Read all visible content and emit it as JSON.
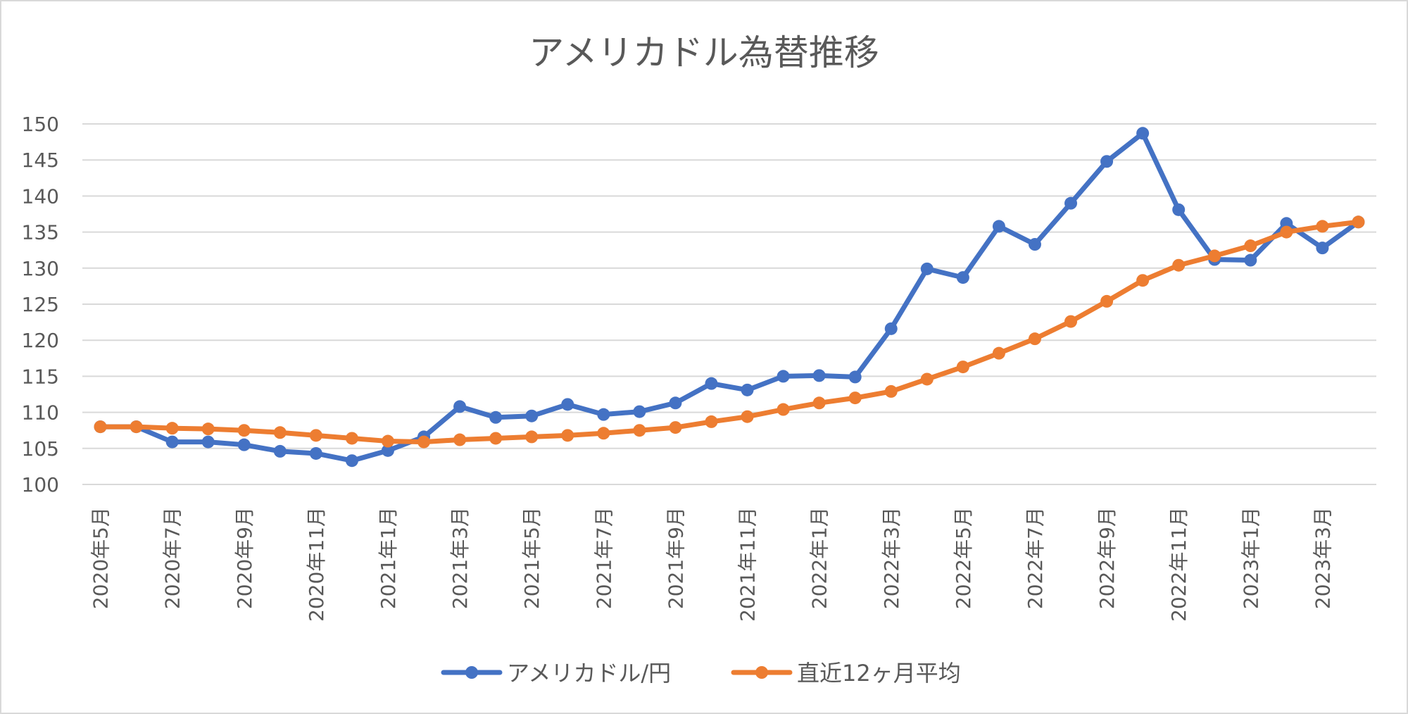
{
  "chart_data": {
    "type": "line",
    "title": "アメリカドル為替推移",
    "xlabel": "",
    "ylabel": "",
    "ylim": [
      100,
      150
    ],
    "yticks": [
      "100",
      "105",
      "110",
      "115",
      "120",
      "125",
      "130",
      "135",
      "140",
      "145",
      "150"
    ],
    "grid": true,
    "legend_position": "bottom",
    "x": [
      "2020年5月",
      "2020年6月",
      "2020年7月",
      "2020年8月",
      "2020年9月",
      "2020年10月",
      "2020年11月",
      "2020年12月",
      "2021年1月",
      "2021年2月",
      "2021年3月",
      "2021年4月",
      "2021年5月",
      "2021年6月",
      "2021年7月",
      "2021年8月",
      "2021年9月",
      "2021年10月",
      "2021年11月",
      "2021年12月",
      "2022年1月",
      "2022年2月",
      "2022年3月",
      "2022年4月",
      "2022年5月",
      "2022年6月",
      "2022年7月",
      "2022年8月",
      "2022年9月",
      "2022年10月",
      "2022年11月",
      "2022年12月",
      "2023年1月",
      "2023年2月",
      "2023年3月",
      "2023年4月"
    ],
    "xticks_shown": [
      "2020年5月",
      "2020年7月",
      "2020年9月",
      "2020年11月",
      "2021年1月",
      "2021年3月",
      "2021年5月",
      "2021年7月",
      "2021年9月",
      "2021年11月",
      "2022年1月",
      "2022年3月",
      "2022年5月",
      "2022年7月",
      "2022年9月",
      "2022年11月",
      "2023年1月",
      "2023年3月"
    ],
    "series": [
      {
        "name": "アメリカドル/円",
        "color": "#4472C4",
        "values": [
          108.0,
          108.0,
          105.9,
          105.9,
          105.5,
          104.6,
          104.3,
          103.3,
          104.7,
          106.6,
          110.8,
          109.3,
          109.5,
          111.1,
          109.7,
          110.1,
          111.3,
          114.0,
          113.1,
          115.0,
          115.1,
          114.9,
          121.6,
          129.9,
          128.7,
          135.8,
          133.3,
          139.0,
          144.8,
          148.7,
          138.1,
          131.2,
          131.1,
          136.2,
          132.8,
          136.4
        ]
      },
      {
        "name": "直近12ヶ月平均",
        "color": "#ED7D31",
        "values": [
          108.0,
          108.0,
          107.8,
          107.7,
          107.5,
          107.2,
          106.8,
          106.4,
          106.0,
          105.9,
          106.2,
          106.4,
          106.6,
          106.8,
          107.1,
          107.5,
          107.9,
          108.7,
          109.4,
          110.4,
          111.3,
          112.0,
          112.9,
          114.6,
          116.3,
          118.2,
          120.2,
          122.6,
          125.4,
          128.3,
          130.4,
          131.7,
          133.1,
          135.0,
          135.8,
          136.4
        ]
      }
    ]
  }
}
